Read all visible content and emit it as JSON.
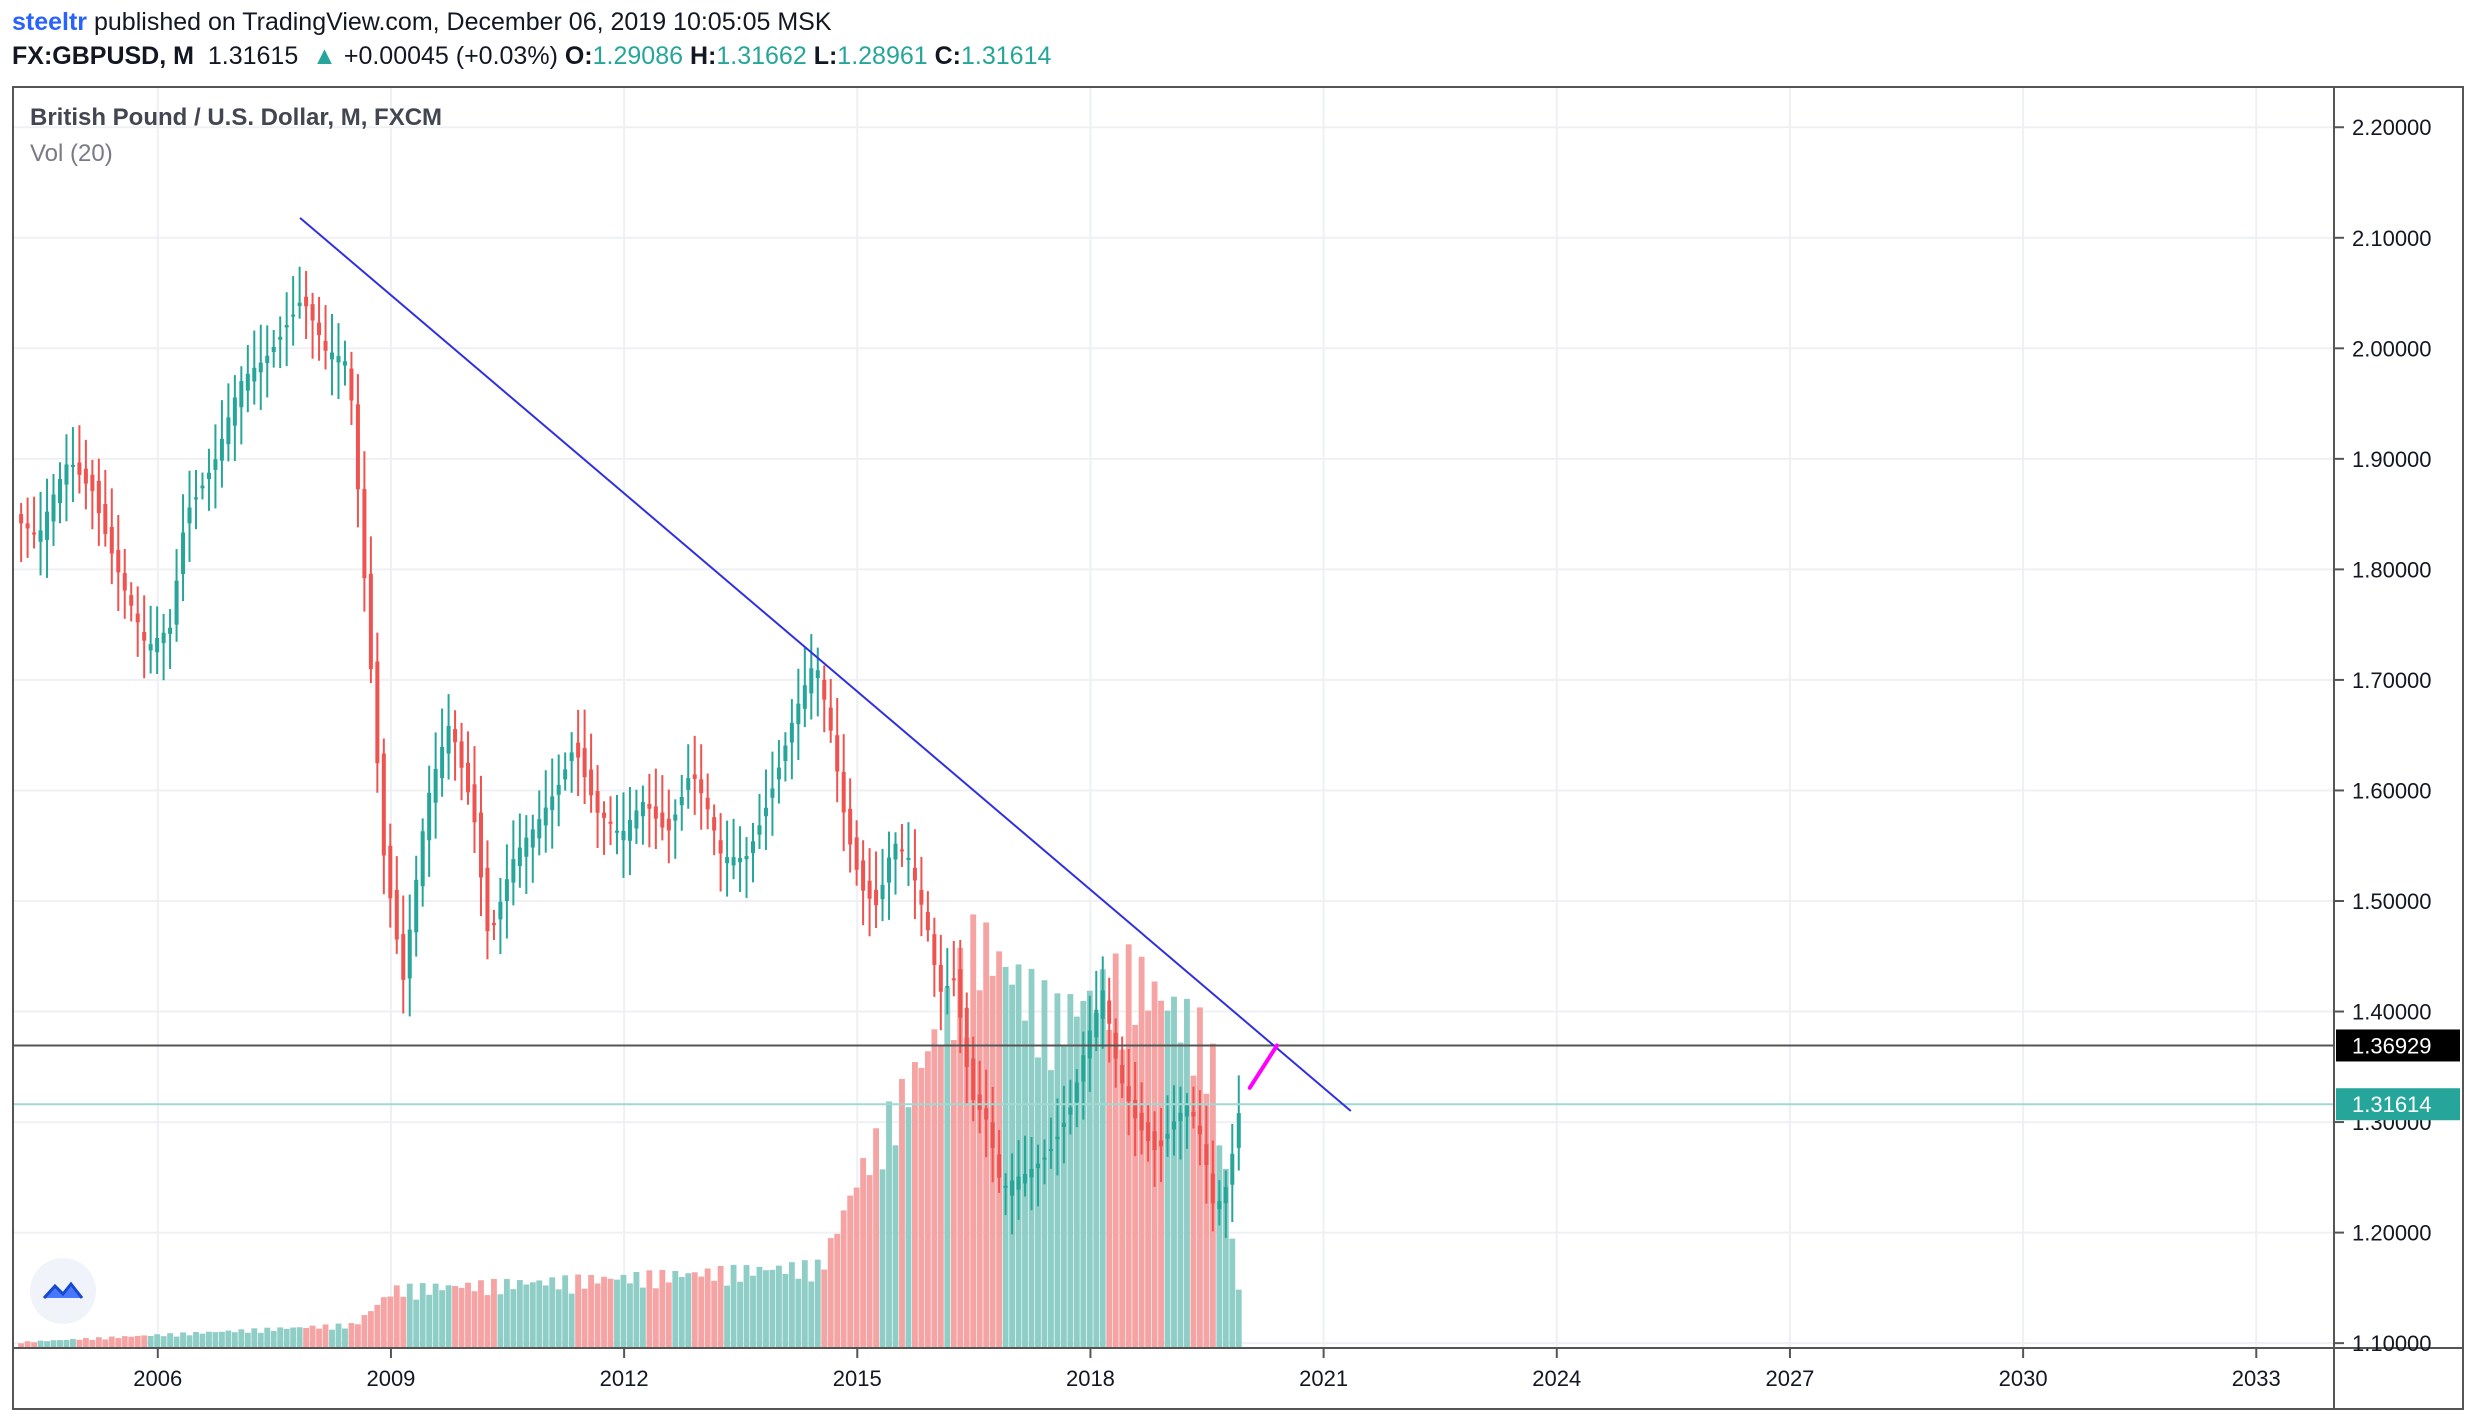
{
  "header": {
    "user": "steeltr",
    "published": " published on TradingView.com, December 06, 2019 10:05:05 MSK",
    "symbol": "FX:GBPUSD, M",
    "last": "1.31615",
    "change_arrow": "▲",
    "change": "+0.00045 (+0.03%)",
    "o_label": "O:",
    "o_value": "1.29086",
    "h_label": "H:",
    "h_value": "1.31662",
    "l_label": "L:",
    "l_value": "1.28961",
    "c_label": "C:",
    "c_value": "1.31614"
  },
  "legend": {
    "title": "British Pound / U.S. Dollar, M, FXCM",
    "volume": "Vol (20)"
  },
  "colors": {
    "up": "#26a69a",
    "down": "#ef5350",
    "vol_up": "#8fcdc7",
    "vol_down": "#f5a3a3",
    "trendline": "#3030e0",
    "level_line": "#555555",
    "price_line": "#9fd9d2",
    "projection": "#ff00ff"
  },
  "chart_data": {
    "type": "candlestick",
    "title": "British Pound / U.S. Dollar, M, FXCM",
    "interval": "monthly",
    "x_range": [
      2004.15,
      2034.0
    ],
    "y_range": [
      1.0956,
      2.2355
    ],
    "x_tick_labels": [
      "2006",
      "2009",
      "2012",
      "2015",
      "2018",
      "2021",
      "2024",
      "2027",
      "2030",
      "2033"
    ],
    "y_tick_labels": [
      "2.20000",
      "2.10000",
      "2.00000",
      "1.90000",
      "1.80000",
      "1.70000",
      "1.60000",
      "1.50000",
      "1.40000",
      "1.30000",
      "1.20000",
      "1.10000"
    ],
    "price_anchors": [
      [
        2004.2,
        1.85
      ],
      [
        2004.5,
        1.82
      ],
      [
        2004.9,
        1.9
      ],
      [
        2005.2,
        1.88
      ],
      [
        2005.6,
        1.78
      ],
      [
        2005.9,
        1.72
      ],
      [
        2006.2,
        1.75
      ],
      [
        2006.4,
        1.86
      ],
      [
        2006.8,
        1.9
      ],
      [
        2007.1,
        1.96
      ],
      [
        2007.4,
        1.99
      ],
      [
        2007.7,
        2.03
      ],
      [
        2007.9,
        2.05
      ],
      [
        2008.2,
        1.99
      ],
      [
        2008.5,
        1.98
      ],
      [
        2008.75,
        1.75
      ],
      [
        2008.95,
        1.55
      ],
      [
        2009.2,
        1.43
      ],
      [
        2009.5,
        1.58
      ],
      [
        2009.8,
        1.66
      ],
      [
        2010.1,
        1.59
      ],
      [
        2010.3,
        1.47
      ],
      [
        2010.6,
        1.53
      ],
      [
        2010.9,
        1.56
      ],
      [
        2011.2,
        1.61
      ],
      [
        2011.4,
        1.65
      ],
      [
        2011.7,
        1.58
      ],
      [
        2012.0,
        1.55
      ],
      [
        2012.3,
        1.59
      ],
      [
        2012.6,
        1.57
      ],
      [
        2012.9,
        1.62
      ],
      [
        2013.1,
        1.58
      ],
      [
        2013.3,
        1.53
      ],
      [
        2013.6,
        1.54
      ],
      [
        2013.9,
        1.6
      ],
      [
        2014.2,
        1.66
      ],
      [
        2014.5,
        1.71
      ],
      [
        2014.7,
        1.65
      ],
      [
        2014.9,
        1.57
      ],
      [
        2015.1,
        1.52
      ],
      [
        2015.3,
        1.5
      ],
      [
        2015.5,
        1.55
      ],
      [
        2015.7,
        1.53
      ],
      [
        2015.95,
        1.47
      ],
      [
        2016.1,
        1.42
      ],
      [
        2016.3,
        1.44
      ],
      [
        2016.5,
        1.33
      ],
      [
        2016.7,
        1.3
      ],
      [
        2016.9,
        1.23
      ],
      [
        2017.2,
        1.25
      ],
      [
        2017.5,
        1.28
      ],
      [
        2017.8,
        1.32
      ],
      [
        2018.0,
        1.37
      ],
      [
        2018.2,
        1.41
      ],
      [
        2018.4,
        1.34
      ],
      [
        2018.6,
        1.31
      ],
      [
        2018.9,
        1.28
      ],
      [
        2019.1,
        1.3
      ],
      [
        2019.3,
        1.31
      ],
      [
        2019.5,
        1.27
      ],
      [
        2019.6,
        1.22
      ],
      [
        2019.75,
        1.23
      ],
      [
        2019.9,
        1.29
      ],
      [
        2019.93,
        1.316
      ]
    ],
    "volume_profile": [
      [
        2004.2,
        0.005
      ],
      [
        2008.5,
        0.02
      ],
      [
        2009.0,
        0.05
      ],
      [
        2012.0,
        0.06
      ],
      [
        2014.5,
        0.07
      ],
      [
        2015.0,
        0.15
      ],
      [
        2016.0,
        0.27
      ],
      [
        2016.5,
        0.35
      ],
      [
        2017.5,
        0.28
      ],
      [
        2018.5,
        0.32
      ],
      [
        2019.5,
        0.26
      ],
      [
        2019.9,
        0.03
      ]
    ],
    "trendline": {
      "from": [
        2007.83,
        2.118
      ],
      "to": [
        2021.35,
        1.31
      ]
    },
    "projection": {
      "from": [
        2020.05,
        1.331
      ],
      "to": [
        2020.4,
        1.3693
      ]
    },
    "level_line": {
      "value": 1.36929,
      "label": "1.36929"
    },
    "last_price": {
      "value": 1.31614,
      "label": "1.31614"
    }
  }
}
